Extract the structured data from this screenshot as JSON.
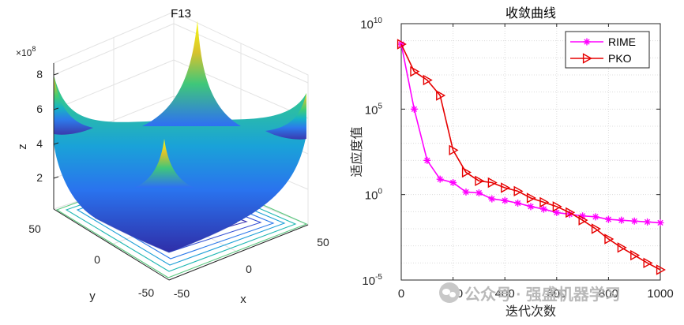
{
  "chart_data": [
    {
      "type": "surface3d",
      "title": "F13",
      "xlabel": "x",
      "ylabel": "y",
      "zlabel": "z",
      "x_ticks": [
        "-50",
        "0",
        "50"
      ],
      "y_ticks": [
        "-50",
        "0",
        "50"
      ],
      "z_ticks": [
        "2",
        "4",
        "6",
        "8"
      ],
      "z_exponent": "×10",
      "z_exponent_power": "8",
      "z_range": [
        0,
        8
      ],
      "xlim": [
        -50,
        50
      ],
      "ylim": [
        -50,
        50
      ],
      "colormap": [
        "#3e26a8",
        "#2e6ff4",
        "#13b2c9",
        "#46cf6b",
        "#d2c42e",
        "#f9fb14"
      ],
      "contours": true
    },
    {
      "type": "line",
      "title": "收敛曲线",
      "xlabel": "迭代次数",
      "ylabel": "适应度值",
      "xlim": [
        0,
        1000
      ],
      "yscale": "log",
      "ylim_exp": [
        -5,
        10
      ],
      "x_ticks": [
        "0",
        "200",
        "400",
        "600",
        "800",
        "1000"
      ],
      "y_ticks": [
        {
          "base": "10",
          "exp": "-5",
          "value_exp": -5
        },
        {
          "base": "10",
          "exp": "0",
          "value_exp": 0
        },
        {
          "base": "10",
          "exp": "5",
          "value_exp": 5
        },
        {
          "base": "10",
          "exp": "10",
          "value_exp": 10
        }
      ],
      "legend_position": "top-right",
      "series": [
        {
          "name": "RIME",
          "color": "#ff00ff",
          "marker": "asterisk",
          "x": [
            0,
            50,
            100,
            150,
            200,
            250,
            300,
            350,
            400,
            450,
            500,
            550,
            600,
            650,
            700,
            750,
            800,
            850,
            900,
            950,
            1000
          ],
          "log10_y": [
            8.8,
            5.0,
            2.0,
            0.9,
            0.7,
            0.15,
            0.1,
            -0.25,
            -0.35,
            -0.5,
            -0.7,
            -0.85,
            -1.05,
            -1.15,
            -1.25,
            -1.3,
            -1.45,
            -1.5,
            -1.55,
            -1.6,
            -1.65
          ]
        },
        {
          "name": "PKO",
          "color": "#e60000",
          "marker": "triangle-right",
          "x": [
            0,
            50,
            100,
            150,
            200,
            250,
            300,
            350,
            400,
            450,
            500,
            550,
            600,
            650,
            700,
            750,
            800,
            850,
            900,
            950,
            1000
          ],
          "log10_y": [
            8.8,
            7.2,
            6.7,
            5.8,
            2.6,
            1.3,
            0.8,
            0.7,
            0.4,
            0.2,
            -0.2,
            -0.45,
            -0.7,
            -1.05,
            -1.5,
            -2.0,
            -2.6,
            -3.1,
            -3.55,
            -4.0,
            -4.4
          ]
        }
      ]
    }
  ],
  "watermark": {
    "text": "公众号 · 强盛机器学习"
  }
}
